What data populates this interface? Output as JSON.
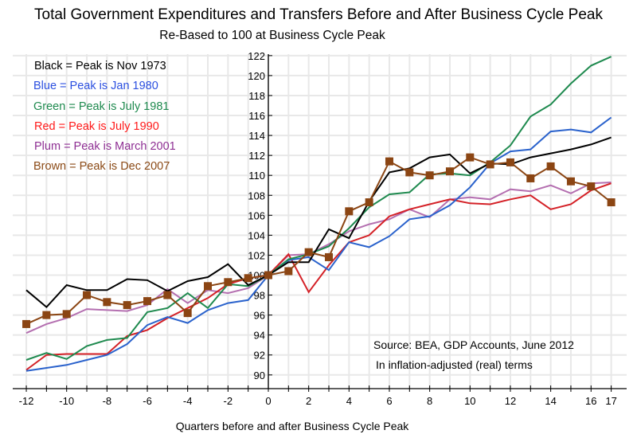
{
  "chart_data": {
    "type": "line",
    "title": "Total Government Expenditures and Transfers Before and After Business Cycle Peak",
    "subtitle": "Re-Based to 100 at Business Cycle Peak",
    "xlabel": "Quarters before and after Business Cycle Peak",
    "ylabel": "",
    "xlim": [
      -12.7,
      17.8
    ],
    "ylim": [
      88.6,
      122.2
    ],
    "grid": true,
    "x": [
      -12,
      -11,
      -10,
      -9,
      -8,
      -7,
      -6,
      -5,
      -4,
      -3,
      -2,
      -1,
      0,
      1,
      2,
      3,
      4,
      5,
      6,
      7,
      8,
      9,
      10,
      11,
      12,
      13,
      14,
      15,
      16,
      17
    ],
    "x_ticks": [
      -12,
      -11,
      -10,
      -9,
      -8,
      -7,
      -6,
      -5,
      -4,
      -3,
      -2,
      -1,
      0,
      1,
      2,
      3,
      4,
      5,
      6,
      7,
      8,
      9,
      10,
      11,
      12,
      13,
      14,
      15,
      16,
      17
    ],
    "x_tick_labels": [
      {
        "x": -12,
        "label": "-12"
      },
      {
        "x": -10,
        "label": "-10"
      },
      {
        "x": -8,
        "label": "-8"
      },
      {
        "x": -6,
        "label": "-6"
      },
      {
        "x": -4,
        "label": "-4"
      },
      {
        "x": -2,
        "label": "-2"
      },
      {
        "x": 0,
        "label": "0"
      },
      {
        "x": 2,
        "label": "2"
      },
      {
        "x": 4,
        "label": "4"
      },
      {
        "x": 6,
        "label": "6"
      },
      {
        "x": 8,
        "label": "8"
      },
      {
        "x": 10,
        "label": "10"
      },
      {
        "x": 12,
        "label": "12"
      },
      {
        "x": 14,
        "label": "14"
      },
      {
        "x": 16,
        "label": "16"
      },
      {
        "x": 17,
        "label": "17"
      }
    ],
    "y_ticks": [
      90,
      92,
      94,
      96,
      98,
      100,
      102,
      104,
      106,
      108,
      110,
      112,
      114,
      116,
      118,
      120,
      122
    ],
    "series": [
      {
        "name": "Black = Peak is Nov 1973",
        "color": "#000000",
        "marker": "none",
        "values": [
          98.5,
          96.8,
          99.0,
          98.5,
          98.5,
          99.6,
          99.5,
          98.4,
          99.4,
          99.8,
          101.1,
          99.0,
          100.0,
          101.3,
          101.3,
          104.6,
          103.7,
          107.4,
          110.3,
          110.7,
          111.8,
          112.1,
          110.2,
          111.2,
          111.1,
          111.8,
          112.2,
          112.6,
          113.1,
          113.8
        ]
      },
      {
        "name": "Blue = Peak is Jan 1980",
        "color": "#2a62cc",
        "marker": "none",
        "values": [
          90.4,
          90.7,
          91.0,
          91.5,
          92.0,
          93.1,
          95.0,
          95.8,
          95.2,
          96.5,
          97.2,
          97.5,
          100.0,
          101.5,
          101.8,
          100.5,
          103.3,
          102.8,
          103.9,
          105.6,
          105.9,
          107.0,
          108.8,
          111.2,
          112.4,
          112.6,
          114.4,
          114.6,
          114.3,
          115.8
        ]
      },
      {
        "name": "Green = Peak is July 1981",
        "color": "#1f8a4f",
        "marker": "none",
        "values": [
          91.5,
          92.2,
          91.6,
          92.9,
          93.5,
          93.7,
          96.3,
          96.7,
          98.2,
          96.7,
          99.1,
          98.9,
          100.0,
          101.6,
          102.1,
          102.9,
          104.7,
          106.8,
          108.1,
          108.3,
          110.1,
          110.2,
          110.0,
          111.3,
          113.0,
          115.9,
          117.1,
          119.2,
          121.0,
          121.9
        ]
      },
      {
        "name": "Red = Peak is July 1990",
        "color": "#d42127",
        "marker": "none",
        "values": [
          90.5,
          92.0,
          92.1,
          92.1,
          92.1,
          93.9,
          94.5,
          95.7,
          96.7,
          97.7,
          99.1,
          99.7,
          100.0,
          102.1,
          98.3,
          101.0,
          103.3,
          104.0,
          105.9,
          106.6,
          107.1,
          107.6,
          107.2,
          107.1,
          107.6,
          108.0,
          106.6,
          107.1,
          108.5,
          109.2
        ]
      },
      {
        "name": "Plum = Peak is March 2001",
        "color": "#b46fb0",
        "marker": "none",
        "values": [
          94.2,
          95.1,
          95.7,
          96.6,
          96.5,
          96.4,
          97.0,
          98.6,
          97.2,
          98.5,
          98.2,
          98.7,
          100.0,
          102.0,
          102.1,
          103.1,
          104.4,
          105.1,
          105.6,
          106.6,
          105.8,
          107.6,
          107.8,
          107.6,
          108.6,
          108.4,
          109.0,
          108.2,
          109.2,
          109.3
        ]
      },
      {
        "name": "Brown = Peak is Dec 2007",
        "color": "#8b4513",
        "marker": "square",
        "values": [
          95.1,
          96.0,
          96.1,
          98.0,
          97.3,
          97.0,
          97.4,
          98.0,
          96.2,
          98.9,
          99.3,
          99.7,
          100.0,
          100.4,
          102.3,
          101.8,
          106.4,
          107.3,
          111.4,
          110.3,
          110.0,
          110.4,
          111.8,
          111.1,
          111.3,
          109.7,
          110.9,
          109.4,
          108.9,
          107.3
        ]
      }
    ],
    "legend_placement": "top-left",
    "annotations": [
      "Source:  BEA, GDP Accounts, June 2012",
      "In inflation-adjusted (real) terms"
    ]
  }
}
